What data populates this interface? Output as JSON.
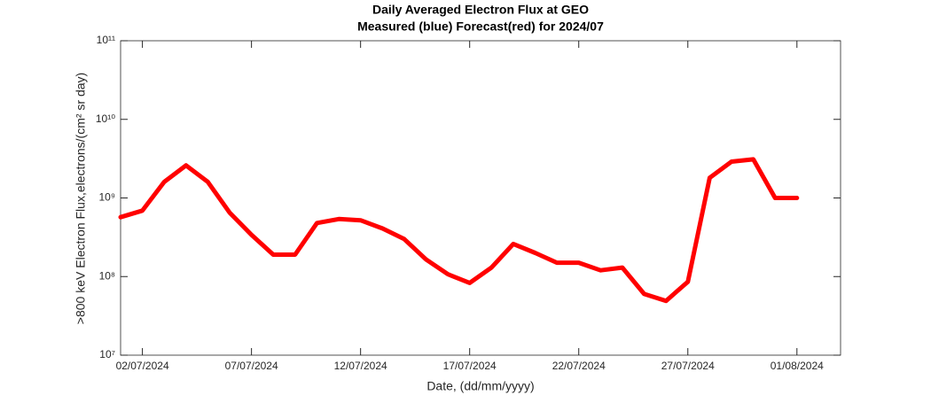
{
  "chart_data": {
    "type": "line",
    "title": "Daily Averaged Electron Flux at GEO",
    "subtitle": "Measured (blue) Forecast(red) for 2024/07",
    "x_label": "Date, (dd/mm/yyyy)",
    "y_label": ">800 keV Electron Flux,electrons/(cm² sr day)",
    "log_y": true,
    "x": [
      "01/07/2024",
      "02/07/2024",
      "03/07/2024",
      "04/07/2024",
      "05/07/2024",
      "06/07/2024",
      "07/07/2024",
      "08/07/2024",
      "09/07/2024",
      "10/07/2024",
      "11/07/2024",
      "12/07/2024",
      "13/07/2024",
      "14/07/2024",
      "15/07/2024",
      "16/07/2024",
      "17/07/2024",
      "18/07/2024",
      "19/07/2024",
      "20/07/2024",
      "21/07/2024",
      "22/07/2024",
      "23/07/2024",
      "24/07/2024",
      "25/07/2024",
      "26/07/2024",
      "27/07/2024",
      "28/07/2024",
      "29/07/2024",
      "30/07/2024",
      "31/07/2024",
      "01/08/2024"
    ],
    "series": [
      {
        "name": "Forecast",
        "color": "#ff0000",
        "values": [
          570000000,
          690000000,
          1600000000,
          2600000000,
          1600000000,
          650000000,
          340000000,
          190000000,
          190000000,
          480000000,
          540000000,
          520000000,
          410000000,
          300000000,
          165000000,
          107000000,
          83000000,
          130000000,
          260000000,
          200000000,
          150000000,
          150000000,
          120000000,
          130000000,
          60000000,
          49000000,
          86000000,
          1800000000,
          2900000000,
          3100000000,
          1000000000,
          1000000000
        ]
      }
    ],
    "xlim": [
      "01/07/2024",
      "03/08/2024"
    ],
    "xticks": [
      "02/07/2024",
      "07/07/2024",
      "12/07/2024",
      "17/07/2024",
      "22/07/2024",
      "27/07/2024",
      "01/08/2024"
    ],
    "ylim": [
      10000000,
      100000000000
    ],
    "yticks": [
      {
        "value": 10000000,
        "label": "10⁷"
      },
      {
        "value": 100000000,
        "label": "10⁸"
      },
      {
        "value": 1000000000,
        "label": "10⁹"
      },
      {
        "value": 10000000000,
        "label": "10¹⁰"
      },
      {
        "value": 100000000000,
        "label": "10¹¹"
      }
    ]
  }
}
